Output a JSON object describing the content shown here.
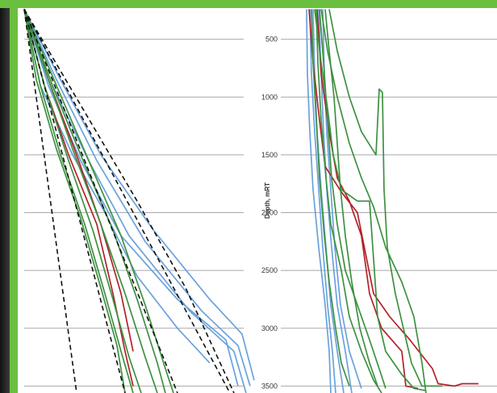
{
  "colors": {
    "blue": "#6aa2dc",
    "red": "#b3222a",
    "green": "#3d9140",
    "black": "#111111",
    "grid": "#a9a9a9",
    "accent": "#6bbf3f"
  },
  "chart_data": [
    {
      "type": "line",
      "title": "",
      "xlabel": "",
      "ylabel": "",
      "ylim": [
        230,
        3560
      ],
      "y_ticks": [
        500,
        1000,
        1500,
        2000,
        2500,
        3000,
        3500
      ],
      "grid": true,
      "series": [
        {
          "color": "blue",
          "points": [
            [
              0,
              240
            ],
            [
              30,
              900
            ],
            [
              70,
              1550
            ],
            [
              120,
              2200
            ],
            [
              190,
              2750
            ],
            [
              250,
              3100
            ],
            [
              265,
              3500
            ]
          ]
        },
        {
          "color": "blue",
          "points": [
            [
              0,
              240
            ],
            [
              35,
              900
            ],
            [
              80,
              1550
            ],
            [
              130,
              2200
            ],
            [
              205,
              2850
            ],
            [
              260,
              3200
            ],
            [
              275,
              3560
            ]
          ]
        },
        {
          "color": "blue",
          "points": [
            [
              0,
              240
            ],
            [
              40,
              850
            ],
            [
              90,
              1550
            ],
            [
              150,
              2250
            ],
            [
              220,
              2850
            ],
            [
              265,
              3150
            ],
            [
              280,
              3500
            ]
          ]
        },
        {
          "color": "blue",
          "points": [
            [
              0,
              240
            ],
            [
              45,
              850
            ],
            [
              95,
              1500
            ],
            [
              160,
              2150
            ],
            [
              230,
              2750
            ],
            [
              270,
              3050
            ],
            [
              285,
              3450
            ]
          ]
        },
        {
          "color": "blue",
          "points": [
            [
              0,
              240
            ],
            [
              20,
              900
            ],
            [
              60,
              1500
            ],
            [
              100,
              2000
            ],
            [
              140,
              2550
            ],
            [
              190,
              3000
            ],
            [
              230,
              3300
            ]
          ]
        },
        {
          "color": "red",
          "points": [
            [
              0,
              240
            ],
            [
              25,
              900
            ],
            [
              55,
              1500
            ],
            [
              90,
              2100
            ],
            [
              110,
              2700
            ],
            [
              125,
              3200
            ],
            [
              135,
              3500
            ]
          ]
        },
        {
          "color": "red",
          "points": [
            [
              0,
              240
            ],
            [
              30,
              850
            ],
            [
              65,
              1500
            ],
            [
              95,
              2100
            ],
            [
              120,
              2700
            ],
            [
              135,
              3200
            ]
          ]
        },
        {
          "color": "green",
          "points": [
            [
              0,
              240
            ],
            [
              20,
              900
            ],
            [
              45,
              1500
            ],
            [
              75,
              2100
            ],
            [
              100,
              2700
            ],
            [
              120,
              3200
            ],
            [
              135,
              3560
            ]
          ]
        },
        {
          "color": "green",
          "points": [
            [
              0,
              240
            ],
            [
              25,
              900
            ],
            [
              55,
              1550
            ],
            [
              85,
              2150
            ],
            [
              110,
              2750
            ],
            [
              130,
              3250
            ],
            [
              145,
              3560
            ]
          ]
        },
        {
          "color": "green",
          "points": [
            [
              0,
              240
            ],
            [
              30,
              850
            ],
            [
              60,
              1450
            ],
            [
              95,
              2100
            ],
            [
              125,
              2700
            ],
            [
              150,
              3250
            ],
            [
              165,
              3560
            ]
          ]
        },
        {
          "color": "green",
          "points": [
            [
              0,
              240
            ],
            [
              15,
              850
            ],
            [
              40,
              1450
            ],
            [
              70,
              2050
            ],
            [
              95,
              2650
            ],
            [
              115,
              3150
            ],
            [
              125,
              3560
            ]
          ]
        },
        {
          "color": "green",
          "points": [
            [
              0,
              240
            ],
            [
              35,
              900
            ],
            [
              70,
              1500
            ],
            [
              110,
              2150
            ],
            [
              140,
              2750
            ],
            [
              165,
              3300
            ],
            [
              175,
              3560
            ]
          ]
        },
        {
          "color": "green",
          "points": [
            [
              0,
              240
            ],
            [
              40,
              900
            ],
            [
              80,
              1550
            ],
            [
              120,
              2200
            ],
            [
              150,
              2800
            ],
            [
              175,
              3350
            ],
            [
              185,
              3560
            ]
          ]
        },
        {
          "color": "black",
          "style": "dashed",
          "points": [
            [
              0,
              240
            ],
            [
              65,
              3560
            ]
          ]
        },
        {
          "color": "black",
          "style": "dashed",
          "points": [
            [
              0,
              240
            ],
            [
              125,
              3560
            ]
          ]
        },
        {
          "color": "black",
          "style": "dashed",
          "points": [
            [
              0,
              240
            ],
            [
              190,
              3560
            ]
          ]
        },
        {
          "color": "black",
          "style": "dashed",
          "points": [
            [
              0,
              240
            ],
            [
              255,
              3560
            ]
          ]
        },
        {
          "color": "black",
          "style": "dashed",
          "points": [
            [
              0,
              240
            ],
            [
              140,
              1900
            ],
            [
              200,
              2650
            ],
            [
              260,
              3560
            ]
          ]
        }
      ]
    },
    {
      "type": "line",
      "title": "",
      "xlabel": "",
      "ylabel": "Depth, mRT",
      "ylim": [
        230,
        3560
      ],
      "y_ticks": [
        500,
        1000,
        1500,
        2000,
        2500,
        3000,
        3500
      ],
      "grid": true,
      "series": [
        {
          "color": "blue",
          "points": [
            [
              32,
              240
            ],
            [
              33,
              800
            ],
            [
              36,
              1300
            ],
            [
              40,
              1800
            ],
            [
              47,
              2300
            ],
            [
              55,
              2800
            ],
            [
              60,
              3200
            ],
            [
              62,
              3560
            ]
          ]
        },
        {
          "color": "blue",
          "points": [
            [
              40,
              240
            ],
            [
              42,
              800
            ],
            [
              45,
              1300
            ],
            [
              50,
              1800
            ],
            [
              56,
              2300
            ],
            [
              62,
              2800
            ],
            [
              70,
              3200
            ],
            [
              78,
              3560
            ]
          ]
        },
        {
          "color": "blue",
          "points": [
            [
              47,
              240
            ],
            [
              50,
              800
            ],
            [
              53,
              1300
            ],
            [
              57,
              1800
            ],
            [
              63,
              2300
            ],
            [
              70,
              2800
            ],
            [
              80,
              3200
            ],
            [
              88,
              3560
            ]
          ]
        },
        {
          "color": "blue",
          "points": [
            [
              52,
              240
            ],
            [
              54,
              800
            ],
            [
              57,
              1300
            ],
            [
              62,
              1800
            ],
            [
              67,
              2300
            ],
            [
              74,
              2800
            ],
            [
              85,
              3200
            ],
            [
              100,
              3520
            ]
          ]
        },
        {
          "color": "blue",
          "points": [
            [
              36,
              240
            ],
            [
              38,
              800
            ],
            [
              42,
              1300
            ],
            [
              47,
              1800
            ],
            [
              52,
              2300
            ],
            [
              58,
              2800
            ],
            [
              64,
              3200
            ],
            [
              68,
              3560
            ]
          ]
        },
        {
          "color": "red",
          "points": [
            [
              35,
              240
            ],
            [
              40,
              700
            ],
            [
              48,
              1200
            ],
            [
              55,
              1600
            ],
            [
              75,
              1820
            ],
            [
              95,
              2000
            ],
            [
              105,
              2350
            ],
            [
              115,
              2700
            ],
            [
              135,
              2900
            ],
            [
              160,
              3100
            ],
            [
              188,
              3350
            ],
            [
              195,
              3480
            ],
            [
              215,
              3500
            ],
            [
              225,
              3480
            ],
            [
              230,
              3480
            ],
            [
              245,
              3480
            ]
          ]
        },
        {
          "color": "red",
          "points": [
            [
              45,
              240
            ],
            [
              50,
              800
            ],
            [
              60,
              1300
            ],
            [
              70,
              1700
            ],
            [
              85,
              1900
            ],
            [
              100,
              2200
            ],
            [
              110,
              2700
            ],
            [
              125,
              3000
            ],
            [
              150,
              3200
            ],
            [
              155,
              3500
            ],
            [
              170,
              3520
            ]
          ]
        },
        {
          "color": "green",
          "points": [
            [
              42,
              240
            ],
            [
              50,
              700
            ],
            [
              58,
              1100
            ],
            [
              65,
              1500
            ],
            [
              75,
              1800
            ],
            [
              95,
              1900
            ],
            [
              110,
              1900
            ],
            [
              115,
              2400
            ],
            [
              120,
              2900
            ],
            [
              130,
              3200
            ],
            [
              150,
              3400
            ],
            [
              165,
              3520
            ],
            [
              180,
              3540
            ]
          ]
        },
        {
          "color": "green",
          "points": [
            [
              50,
              240
            ],
            [
              58,
              600
            ],
            [
              70,
              1000
            ],
            [
              85,
              1400
            ],
            [
              100,
              1700
            ],
            [
              115,
              1950
            ],
            [
              130,
              2300
            ],
            [
              150,
              2600
            ],
            [
              165,
              2900
            ],
            [
              175,
              3300
            ],
            [
              180,
              3560
            ]
          ]
        },
        {
          "color": "green",
          "points": [
            [
              44,
              240
            ],
            [
              46,
              700
            ],
            [
              50,
              1200
            ],
            [
              56,
              1700
            ],
            [
              62,
              2100
            ],
            [
              75,
              2500
            ],
            [
              85,
              2900
            ],
            [
              100,
              3200
            ],
            [
              115,
              3450
            ],
            [
              125,
              3560
            ]
          ]
        },
        {
          "color": "green",
          "points": [
            [
              38,
              240
            ],
            [
              40,
              700
            ],
            [
              44,
              1200
            ],
            [
              48,
              1700
            ],
            [
              54,
              2200
            ],
            [
              60,
              2600
            ],
            [
              68,
              3000
            ],
            [
              75,
              3300
            ],
            [
              85,
              3500
            ]
          ]
        },
        {
          "color": "green",
          "points": [
            [
              55,
              240
            ],
            [
              60,
              600
            ],
            [
              66,
              1000
            ],
            [
              70,
              1400
            ],
            [
              74,
              1800
            ],
            [
              80,
              2200
            ],
            [
              88,
              2600
            ],
            [
              98,
              3000
            ],
            [
              110,
              3300
            ],
            [
              120,
              3500
            ]
          ]
        },
        {
          "color": "green",
          "points": [
            [
              60,
              240
            ],
            [
              70,
              600
            ],
            [
              85,
              1000
            ],
            [
              100,
              1300
            ],
            [
              118,
              1500
            ],
            [
              122,
              930
            ],
            [
              126,
              960
            ],
            [
              128,
              1800
            ],
            [
              132,
              2300
            ],
            [
              142,
              2700
            ],
            [
              152,
              3000
            ],
            [
              162,
              3300
            ],
            [
              175,
              3500
            ],
            [
              200,
              3500
            ]
          ]
        },
        {
          "color": "green",
          "points": [
            [
              48,
              240
            ],
            [
              53,
              700
            ],
            [
              58,
              1200
            ],
            [
              63,
              1700
            ],
            [
              70,
              2100
            ],
            [
              80,
              2500
            ],
            [
              95,
              2800
            ],
            [
              110,
              3100
            ],
            [
              122,
              3350
            ],
            [
              130,
              3520
            ]
          ]
        }
      ]
    }
  ]
}
